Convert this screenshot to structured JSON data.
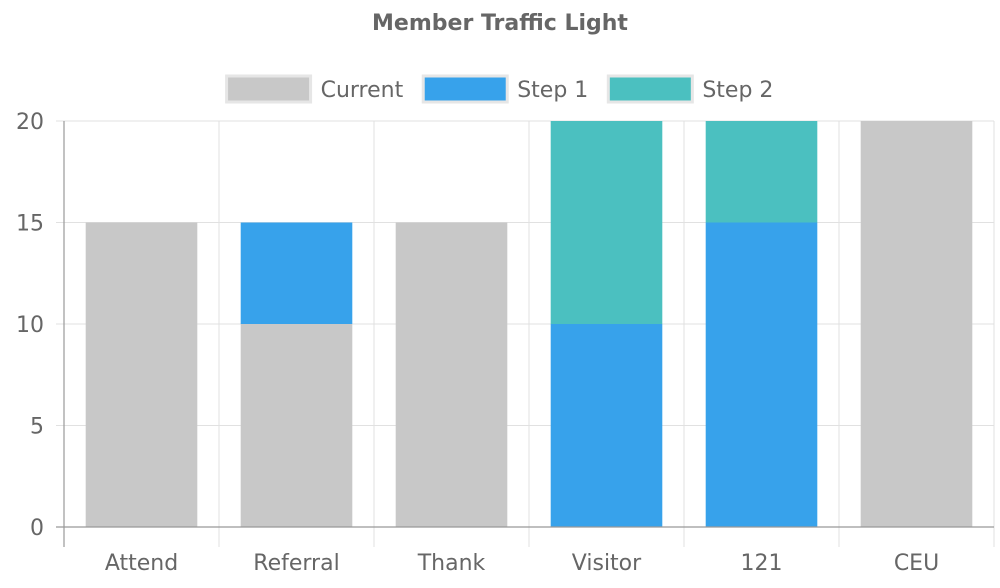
{
  "chart_data": {
    "type": "bar",
    "stacked": true,
    "title": "Member Traffic Light",
    "categories": [
      "Attend",
      "Referral",
      "Thank",
      "Visitor",
      "121",
      "CEU"
    ],
    "series": [
      {
        "name": "Current",
        "color": "#c8c8c8",
        "values": [
          15,
          10,
          15,
          0,
          0,
          20
        ]
      },
      {
        "name": "Step 1",
        "color": "#37a2eb",
        "values": [
          0,
          5,
          0,
          10,
          15,
          0
        ]
      },
      {
        "name": "Step 2",
        "color": "#4bc0c0",
        "values": [
          0,
          0,
          0,
          10,
          5,
          0
        ]
      }
    ],
    "ylim": [
      0,
      20
    ],
    "yticks": [
      "0",
      "5",
      "10",
      "15",
      "20"
    ],
    "grid": true,
    "legend_position": "top"
  }
}
